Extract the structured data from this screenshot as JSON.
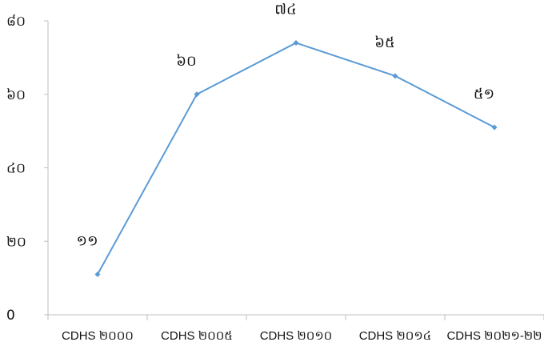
{
  "chart_data": {
    "type": "line",
    "categories": [
      "CDHS ២០០០",
      "CDHS ២០០៥",
      "CDHS ២០១០",
      "CDHS ២០១៤",
      "CDHS ២០២១-២២"
    ],
    "values": [
      11,
      60,
      74,
      65,
      51
    ],
    "data_labels": [
      "១១",
      "៦០",
      "៧៤",
      "៦៥",
      "៥១"
    ],
    "yticks": [
      0,
      20,
      40,
      60,
      80
    ],
    "ytick_labels": [
      "0",
      "២០",
      "៤០",
      "៦០",
      "៨០"
    ],
    "ylim": [
      0,
      80
    ],
    "grid": false,
    "legend": "none",
    "title": "",
    "xlabel": "",
    "ylabel": "",
    "colors": {
      "line": "#5b9bd5",
      "axis": "#bfbfbf",
      "text": "#111111"
    }
  }
}
